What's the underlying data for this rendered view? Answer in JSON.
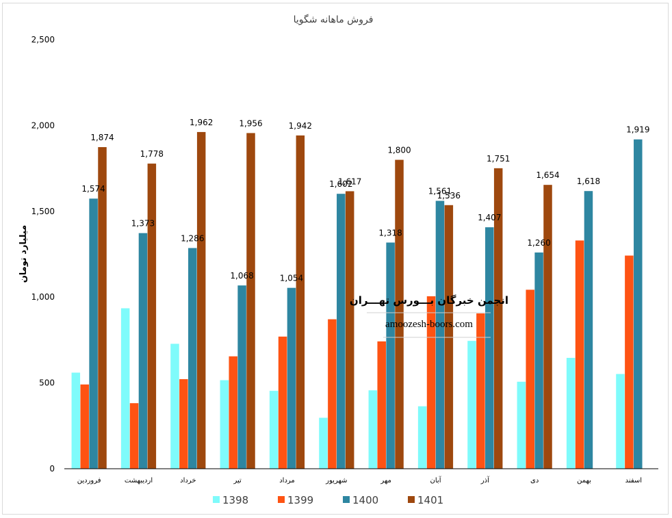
{
  "chart_data": {
    "type": "bar",
    "title": "فروش ماهانه شگویا",
    "ylabel": "میلیارد تومان",
    "xlabel": "",
    "ylim": [
      0,
      2500
    ],
    "yticks": [
      "0",
      "500",
      "1,000",
      "1,500",
      "2,000",
      "2,500"
    ],
    "grid": false,
    "legend_position": "bottom",
    "categories": [
      "فروردین",
      "اردیبهشت",
      "خرداد",
      "تیر",
      "مرداد",
      "شهریور",
      "مهر",
      "آبان",
      "آذر",
      "دی",
      "بهمن",
      "اسفند"
    ],
    "series": [
      {
        "name": "1398",
        "color": "#7ffbfb",
        "values": [
          560,
          935,
          728,
          516,
          454,
          297,
          457,
          364,
          745,
          507,
          646,
          552
        ],
        "labels": [
          "",
          "",
          "",
          "",
          "",
          "",
          "",
          "",
          "",
          "",
          "",
          ""
        ]
      },
      {
        "name": "1399",
        "color": "#fe5313",
        "values": [
          491,
          382,
          522,
          655,
          770,
          871,
          742,
          1005,
          905,
          1043,
          1330,
          1242
        ],
        "labels": [
          "",
          "",
          "",
          "",
          "",
          "",
          "",
          "",
          "",
          "",
          "",
          ""
        ]
      },
      {
        "name": "1400",
        "color": "#2e86a1",
        "values": [
          1574,
          1373,
          1286,
          1068,
          1054,
          1602,
          1318,
          1561,
          1407,
          1260,
          1618,
          1919
        ],
        "labels": [
          "1,574",
          "1,373",
          "1,286",
          "1,068",
          "1,054",
          "1,602",
          "1,318",
          "1,561",
          "1,407",
          "1,260",
          "1,618",
          "1,919"
        ]
      },
      {
        "name": "1401",
        "color": "#9e480e",
        "values": [
          1874,
          1778,
          1962,
          1956,
          1942,
          1617,
          1800,
          1536,
          1751,
          1654,
          null,
          null
        ],
        "labels": [
          "1,874",
          "1,778",
          "1,962",
          "1,956",
          "1,942",
          "1,617",
          "1,800",
          "1,536",
          "1,751",
          "1,654",
          "",
          ""
        ]
      }
    ]
  },
  "watermark": {
    "title": "انجمن خبرگان بـــورس تهـــران",
    "url": "amoozesh-boors.com"
  }
}
